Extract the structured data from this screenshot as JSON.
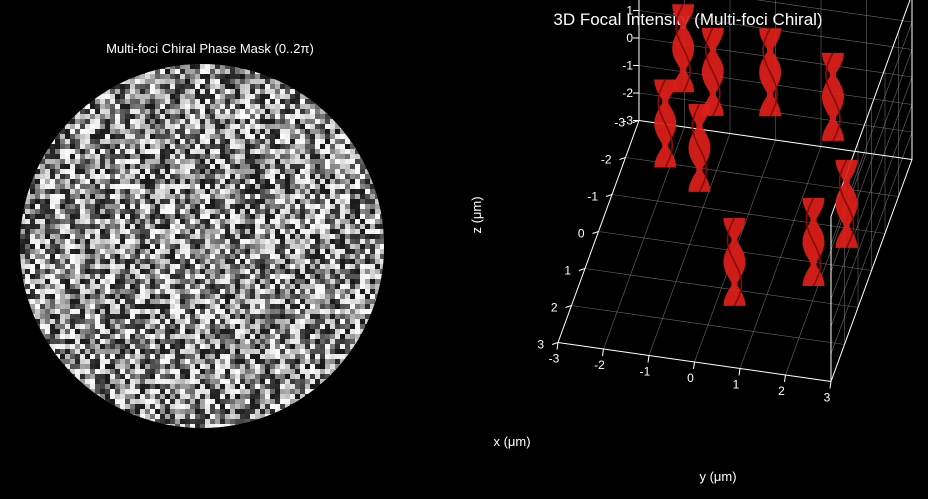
{
  "chart_data": [
    {
      "type": "heatmap",
      "title": "Multi-foci Chiral Phase Mask (0..2π)",
      "colormap": "gray",
      "value_range": [
        0,
        6.2832
      ],
      "aperture": "circular",
      "axes_visible": false
    },
    {
      "type": "scatter",
      "title": "3D Focal Intensity (Multi-foci Chiral)",
      "xlabel": "x (μm)",
      "ylabel": "y (μm)",
      "zlabel": "z (μm)",
      "xlim": [
        -3,
        3
      ],
      "ylim": [
        -3,
        3
      ],
      "zlim": [
        -3,
        3
      ],
      "xticks": [
        "-3",
        "-2",
        "-1",
        "0",
        "1",
        "2",
        "3"
      ],
      "yticks": [
        "-3",
        "-2",
        "-1",
        "0",
        "1",
        "2",
        "3"
      ],
      "zticks": [
        "-3",
        "-2",
        "-1",
        "0",
        "1",
        "2",
        "3"
      ],
      "grid": true,
      "marker": "red helical isosurface",
      "marker_color": "#e0201a",
      "focus_z_extent": [
        -1.6,
        1.6
      ],
      "foci": [
        {
          "x": -2.9,
          "y": -2.0
        },
        {
          "x": -2.4,
          "y": -1.2
        },
        {
          "x": -2.6,
          "y": 0.0
        },
        {
          "x": -2.2,
          "y": 1.5
        },
        {
          "x": -0.9,
          "y": -1.8
        },
        {
          "x": -0.4,
          "y": -0.9
        },
        {
          "x": 0.5,
          "y": 2.6
        },
        {
          "x": 1.6,
          "y": 2.2
        },
        {
          "x": 2.4,
          "y": 0.7
        }
      ]
    }
  ]
}
